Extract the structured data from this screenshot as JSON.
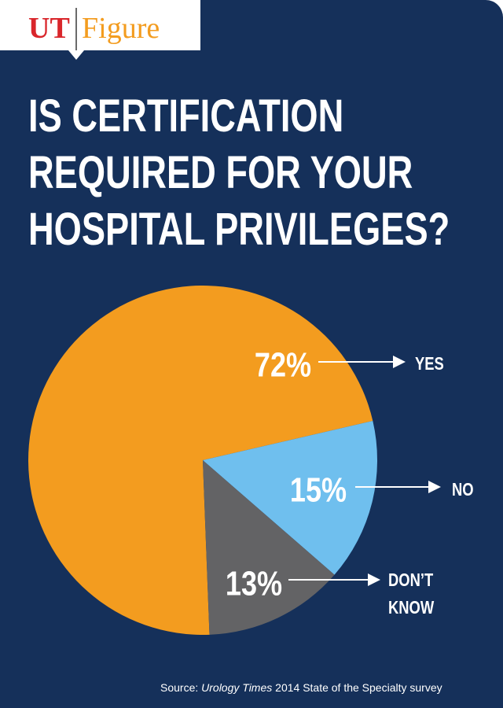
{
  "logo": {
    "brand_ut": "UT",
    "brand_figure": "Figure"
  },
  "title_lines": [
    "IS CERTIFICATION",
    "REQUIRED FOR YOUR",
    "HOSPITAL PRIVILEGES?"
  ],
  "source": {
    "prefix": "Source: ",
    "publication": "Urology Times",
    "suffix": " 2014 State of the Specialty survey"
  },
  "colors": {
    "background": "#15305a",
    "yes": "#f39c1f",
    "no": "#6fbfee",
    "dont_know": "#636365",
    "brand_red": "#d9262b",
    "text": "#ffffff"
  },
  "chart_data": {
    "type": "pie",
    "title": "IS CERTIFICATION REQUIRED FOR YOUR HOSPITAL PRIVILEGES?",
    "slices": [
      {
        "label": "YES",
        "value": 72,
        "display": "72%",
        "color": "#f39c1f"
      },
      {
        "label": "NO",
        "value": 15,
        "display": "15%",
        "color": "#6fbfee"
      },
      {
        "label": "DON’T KNOW",
        "value": 13,
        "display": "13%",
        "color": "#636365"
      }
    ]
  }
}
